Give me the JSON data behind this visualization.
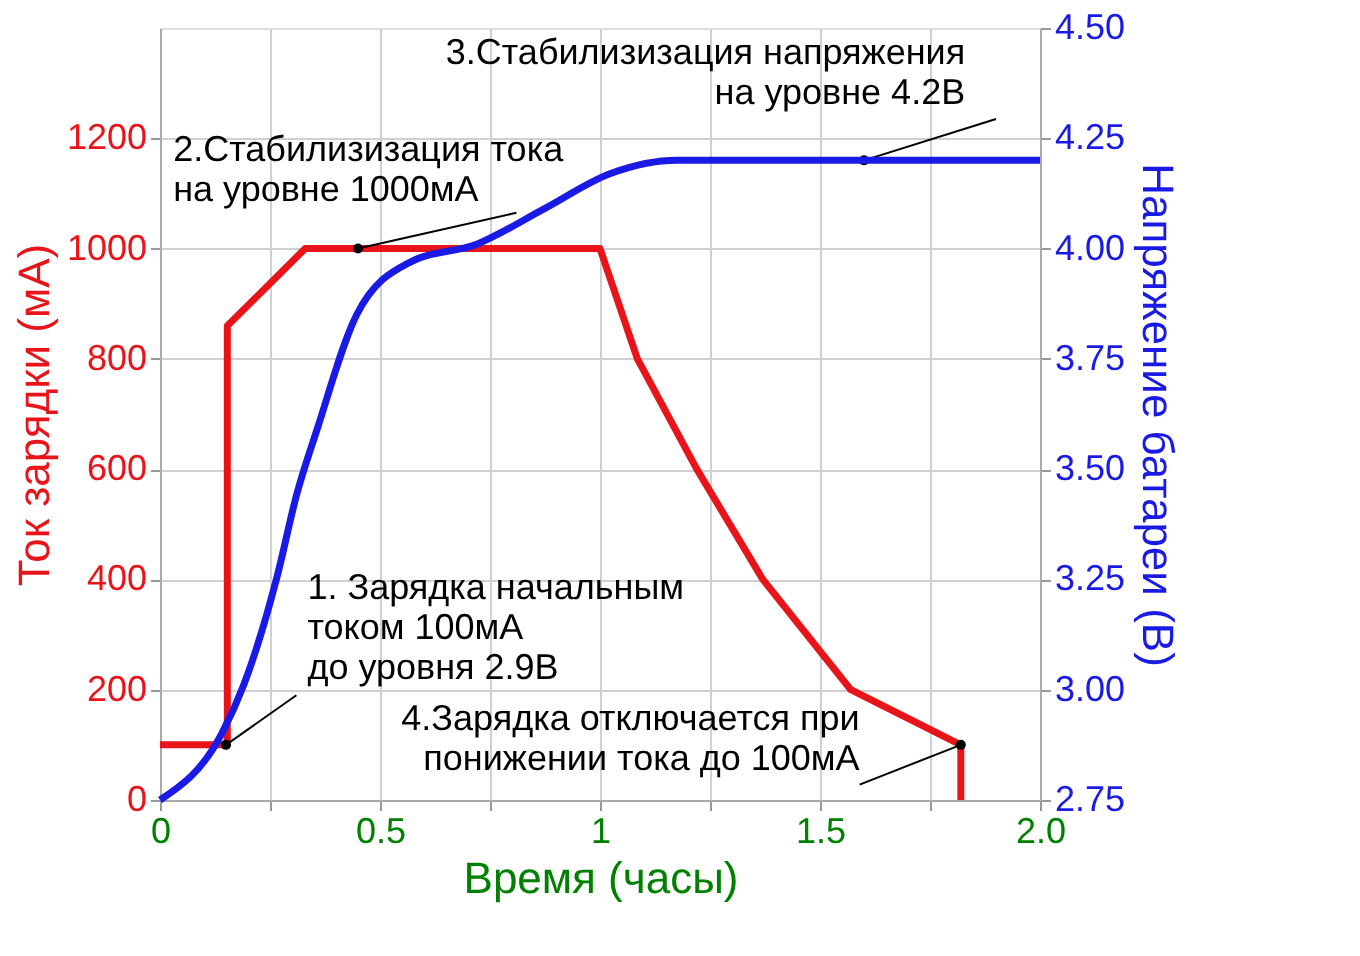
{
  "chart_data": {
    "type": "line",
    "xlabel": "Время (часы)",
    "ylabel": "Ток зарядки (мА)",
    "y2label": "Напряжение батареи (В)",
    "series": [
      {
        "color": "#e8141a",
        "x": [
          0,
          0.153,
          0.153,
          0.33,
          1.0,
          1.085,
          1.22,
          1.37,
          1.57,
          1.82,
          1.82
        ],
        "values": [
          100,
          100,
          860,
          1000,
          1000,
          800,
          600,
          400,
          200,
          100,
          0
        ]
      },
      {
        "color": "#1a1ae6",
        "axis": "y2",
        "x": [
          0,
          0.14,
          0.19,
          0.267,
          0.31,
          0.357,
          0.447,
          0.57,
          0.72,
          0.873,
          1.024,
          1.175,
          2.0
        ],
        "values": [
          2.75,
          2.9,
          3.01,
          3.26,
          3.44,
          3.59,
          3.85,
          3.97,
          4.01,
          4.09,
          4.17,
          4.2,
          4.2
        ]
      }
    ],
    "xlim": [
      0,
      2.0
    ],
    "xticks": [
      0,
      {
        "value": 0.25,
        "label": null
      },
      0.5,
      {
        "value": 0.75,
        "label": null
      },
      1,
      {
        "value": 1.25,
        "label": null
      },
      1.5,
      {
        "value": 1.75,
        "label": null
      },
      {
        "value": 2.0,
        "label": "2.0"
      }
    ],
    "ylim": [
      0,
      1400
    ],
    "yticks": [
      0,
      200,
      400,
      600,
      800,
      1000,
      1200
    ],
    "y2lim": [
      2.75,
      4.5
    ],
    "y2ticks": [
      2.75,
      {
        "value": 3.0,
        "label": "3.00"
      },
      3.25,
      {
        "value": 3.5,
        "label": "3.50"
      },
      3.75,
      {
        "value": 4.0,
        "label": "4.00"
      },
      4.25,
      {
        "value": 4.5,
        "label": "4.50"
      }
    ],
    "grid": true,
    "line_style": "solid",
    "marker": "none",
    "annotations": [
      {
        "text": "1. Зарядка начальным\n    током 100мА\n    до уровня 2.9В",
        "x": 0.15,
        "y": 100
      },
      {
        "text": "2.Стабилизизация тока\n   на уровне 1000мА",
        "x": 0.45,
        "y": 1000
      },
      {
        "text": "3.Стабилизизация напряжения\nна уровне 4.2В",
        "x": 1.6,
        "y": 1160
      },
      {
        "text": "4.Зарядка отключается при\n   понижении тока до 100мА",
        "x": 1.82,
        "y": 100
      }
    ]
  }
}
